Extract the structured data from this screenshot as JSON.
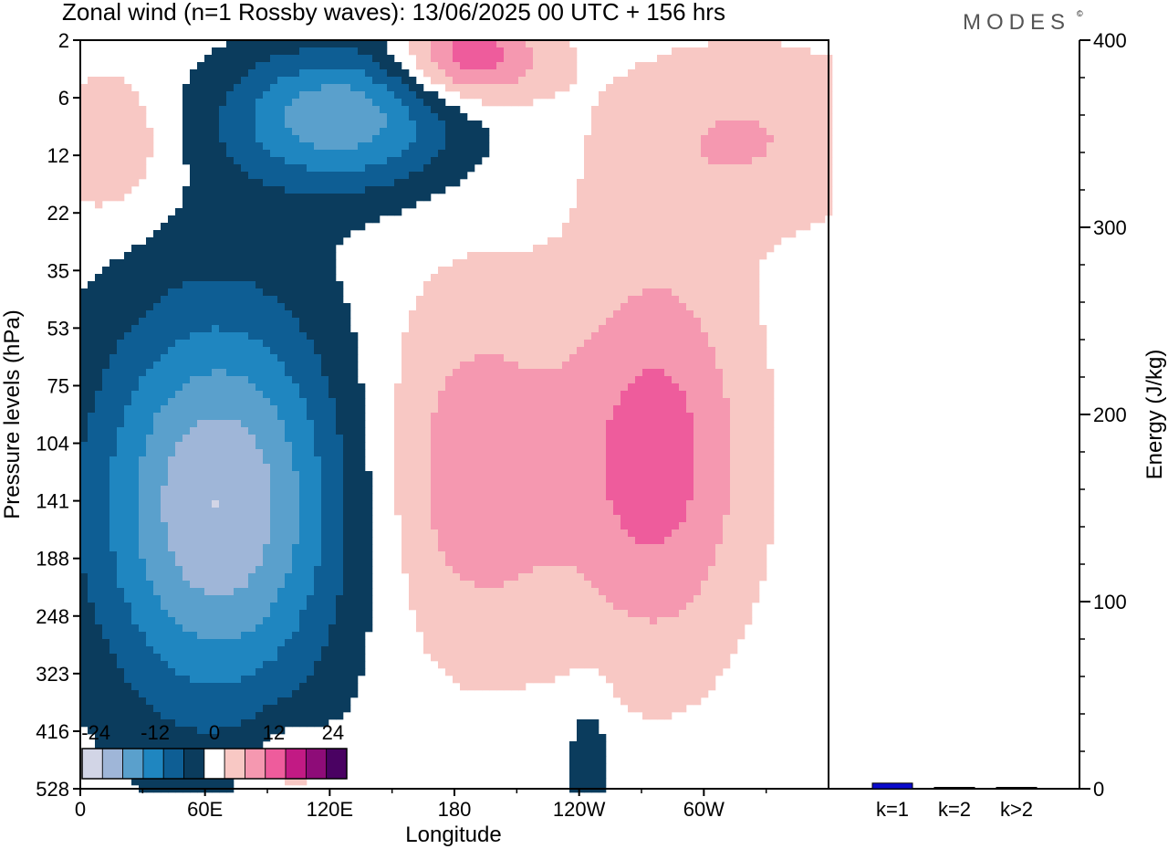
{
  "title": "Zonal wind (n=1 Rossby waves):  13/06/2025  00 UTC  + 156 hrs",
  "logo": "MODES",
  "logo_mark": "©",
  "colors": {
    "neg": [
      "#0b3c5d",
      "#0e5e94",
      "#1f86c0",
      "#5aa0cc",
      "#9fb6d8",
      "#d2d5e6"
    ],
    "zero": "#ffffff",
    "pos": [
      "#f8c8c4",
      "#f598b0",
      "#ee5c9c",
      "#c21a84",
      "#8e0c78",
      "#4a0262"
    ],
    "bar": "#0b0bcc"
  },
  "chart_data": [
    {
      "type": "heatmap",
      "title": "Zonal wind (n=1 Rossby waves):  13/06/2025  00 UTC  + 156 hrs",
      "xlabel": "Longitude",
      "ylabel": "Pressure levels (hPa)",
      "x_ticks": [
        "0",
        "60E",
        "120E",
        "180",
        "120W",
        "60W"
      ],
      "x_tick_degrees": [
        0,
        60,
        120,
        180,
        240,
        300
      ],
      "x_range_degrees": [
        0,
        360
      ],
      "y_ticks": [
        "2",
        "6",
        "12",
        "22",
        "35",
        "53",
        "75",
        "104",
        "141",
        "188",
        "248",
        "323",
        "416",
        "528"
      ],
      "colorbar": {
        "labels": [
          "-24",
          "-12",
          "0",
          "12",
          "24"
        ],
        "levels": [
          -24,
          -12,
          0,
          12,
          24
        ],
        "bins": 13
      },
      "features": [
        {
          "sign": "negative",
          "lon": 65,
          "pres": 141,
          "peak": -22
        },
        {
          "sign": "negative",
          "lon": 128,
          "pres": 8,
          "peak": -17
        },
        {
          "sign": "positive",
          "lon": 186,
          "pres": 3,
          "peak": 14
        },
        {
          "sign": "positive",
          "lon": 188,
          "pres": 120,
          "peak": 9
        },
        {
          "sign": "positive",
          "lon": 276,
          "pres": 110,
          "peak": 12
        }
      ]
    },
    {
      "type": "bar",
      "ylabel": "Energy (J/kg)",
      "categories": [
        "k=1",
        "k=2",
        "k>2"
      ],
      "values": [
        3,
        0.5,
        0.5
      ],
      "ylim": [
        0,
        400
      ],
      "y_ticks": [
        "0",
        "100",
        "200",
        "300",
        "400"
      ]
    }
  ]
}
